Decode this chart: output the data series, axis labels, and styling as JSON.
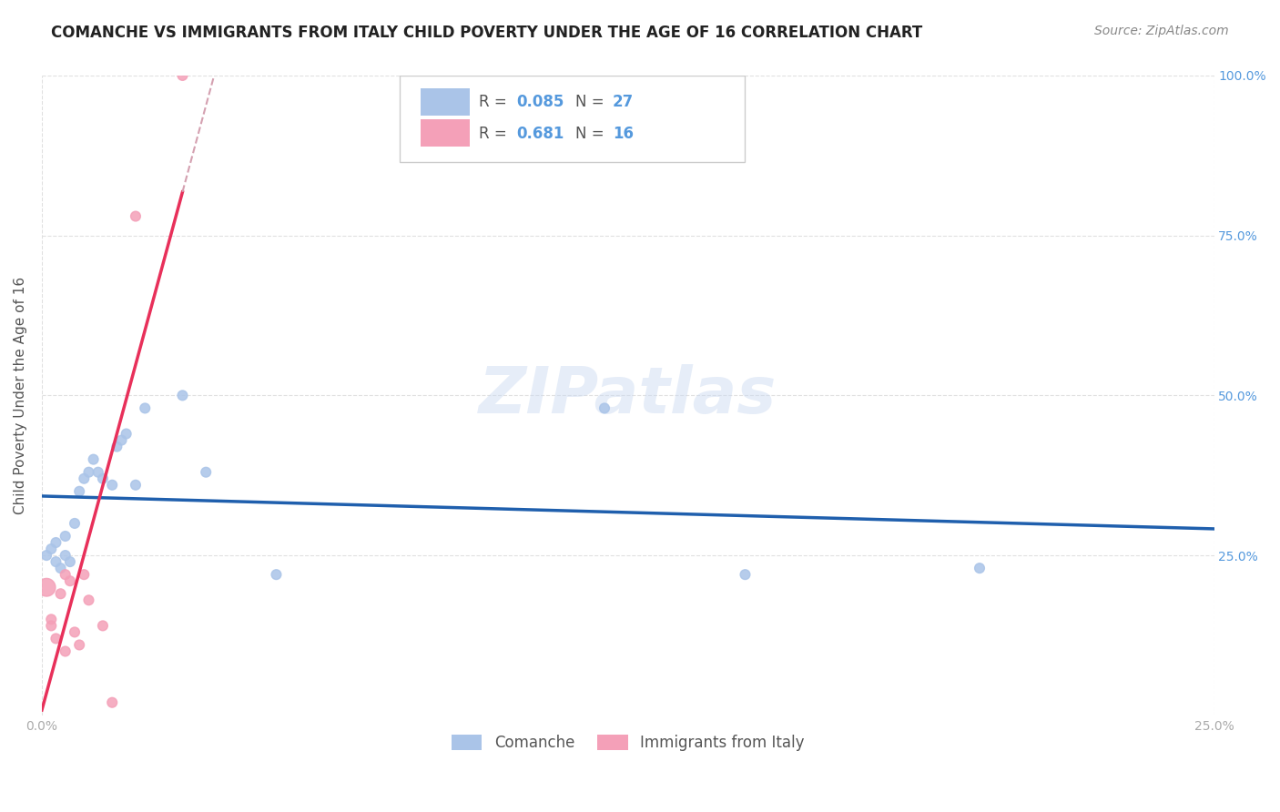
{
  "title": "COMANCHE VS IMMIGRANTS FROM ITALY CHILD POVERTY UNDER THE AGE OF 16 CORRELATION CHART",
  "source": "Source: ZipAtlas.com",
  "ylabel": "Child Poverty Under the Age of 16",
  "xlim": [
    0.0,
    0.25
  ],
  "ylim": [
    0.0,
    1.0
  ],
  "xtick_labels": [
    "0.0%",
    "25.0%"
  ],
  "xtick_vals": [
    0.0,
    0.25
  ],
  "ytick_labels": [
    "25.0%",
    "50.0%",
    "75.0%",
    "100.0%"
  ],
  "ytick_vals": [
    0.25,
    0.5,
    0.75,
    1.0
  ],
  "comanche_x": [
    0.001,
    0.002,
    0.003,
    0.003,
    0.004,
    0.005,
    0.005,
    0.006,
    0.007,
    0.008,
    0.009,
    0.01,
    0.011,
    0.012,
    0.013,
    0.015,
    0.016,
    0.017,
    0.018,
    0.02,
    0.022,
    0.03,
    0.035,
    0.05,
    0.12,
    0.15,
    0.2
  ],
  "comanche_y": [
    0.25,
    0.26,
    0.24,
    0.27,
    0.23,
    0.25,
    0.28,
    0.24,
    0.3,
    0.35,
    0.37,
    0.38,
    0.4,
    0.38,
    0.37,
    0.36,
    0.42,
    0.43,
    0.44,
    0.36,
    0.48,
    0.5,
    0.38,
    0.22,
    0.48,
    0.22,
    0.23
  ],
  "italy_x": [
    0.001,
    0.002,
    0.002,
    0.003,
    0.004,
    0.005,
    0.005,
    0.006,
    0.007,
    0.008,
    0.009,
    0.01,
    0.013,
    0.015,
    0.02,
    0.03
  ],
  "italy_y": [
    0.2,
    0.15,
    0.14,
    0.12,
    0.19,
    0.1,
    0.22,
    0.21,
    0.13,
    0.11,
    0.22,
    0.18,
    0.14,
    0.02,
    0.78,
    1.0
  ],
  "italy_large_idx": 0,
  "comanche_color": "#aac4e8",
  "italy_color": "#f4a0b8",
  "comanche_line_color": "#1f5fad",
  "italy_line_color": "#e8305a",
  "italy_dashed_color": "#d4a0b0",
  "R_comanche": 0.085,
  "N_comanche": 27,
  "R_italy": 0.681,
  "N_italy": 16,
  "legend_comanche": "Comanche",
  "legend_italy": "Immigrants from Italy",
  "watermark": "ZIPatlas",
  "background_color": "#ffffff",
  "grid_color": "#e0e0e0",
  "title_color": "#222222",
  "source_color": "#888888",
  "ylabel_color": "#555555",
  "tick_color": "#aaaaaa",
  "right_tick_color": "#5599dd",
  "legend_text_color": "#555555",
  "legend_value_color": "#5599dd"
}
